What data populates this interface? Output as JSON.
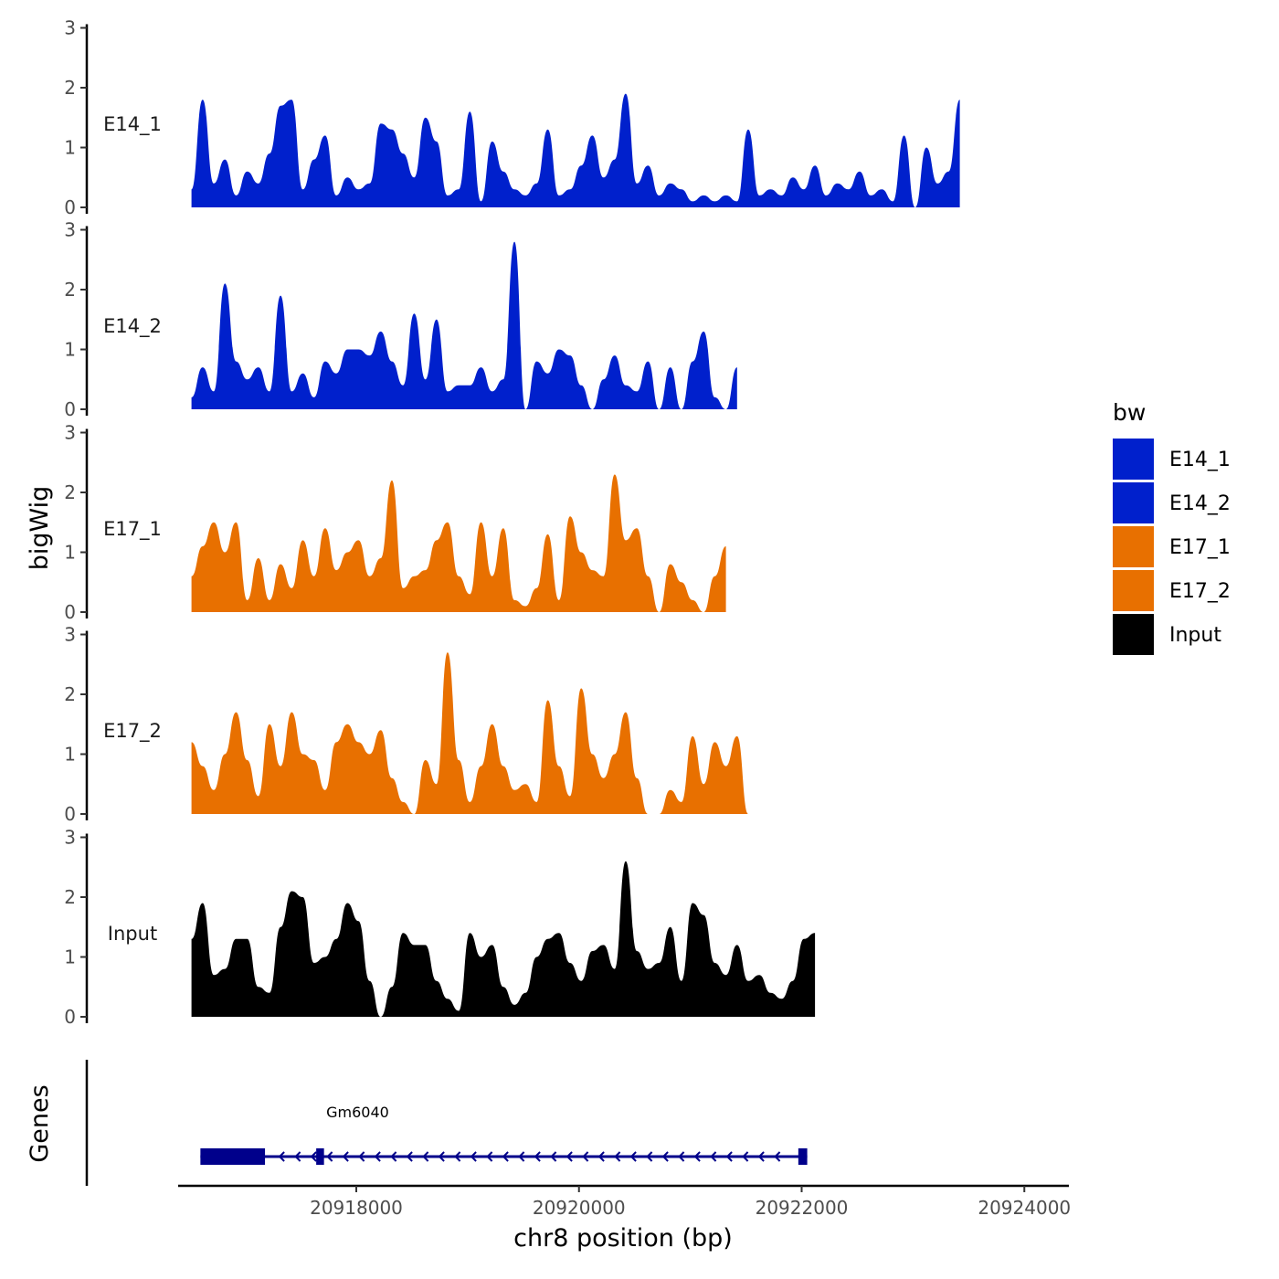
{
  "chart_data": {
    "type": "area",
    "ylabel": "bigWig",
    "xlabel": "chr8 position (bp)",
    "xlim": [
      20916400,
      20924400
    ],
    "ylim": [
      0,
      3
    ],
    "y_ticks": [
      "0",
      "1",
      "2",
      "3"
    ],
    "x_ticks": [
      {
        "value": 20918000,
        "label": "20918000"
      },
      {
        "value": 20920000,
        "label": "20920000"
      },
      {
        "value": 20922000,
        "label": "20922000"
      },
      {
        "value": 20924000,
        "label": "20924000"
      }
    ],
    "legend": {
      "title": "bw",
      "position": "right",
      "entries": [
        {
          "label": "E14_1",
          "color": "#0020cc"
        },
        {
          "label": "E14_2",
          "color": "#0020cc"
        },
        {
          "label": "E17_1",
          "color": "#e87000"
        },
        {
          "label": "E17_2",
          "color": "#e87000"
        },
        {
          "label": "Input",
          "color": "#000000"
        }
      ]
    },
    "x_start": 20916520,
    "x_step": 100,
    "series": [
      {
        "name": "E14_1",
        "color": "#0020cc",
        "values": [
          0.3,
          1.8,
          0.4,
          0.8,
          0.2,
          0.6,
          0.4,
          0.9,
          1.7,
          1.8,
          0.3,
          0.8,
          1.2,
          0.2,
          0.5,
          0.3,
          0.4,
          1.4,
          1.3,
          0.9,
          0.5,
          1.5,
          1.1,
          0.2,
          0.3,
          1.6,
          0.1,
          1.1,
          0.6,
          0.3,
          0.2,
          0.4,
          1.3,
          0.2,
          0.3,
          0.7,
          1.2,
          0.5,
          0.8,
          1.9,
          0.4,
          0.7,
          0.2,
          0.4,
          0.3,
          0.1,
          0.2,
          0.1,
          0.2,
          0.1,
          1.3,
          0.2,
          0.3,
          0.2,
          0.5,
          0.3,
          0.7,
          0.2,
          0.4,
          0.3,
          0.6,
          0.2,
          0.3,
          0.1,
          1.2,
          0.0,
          1.0,
          0.4,
          0.6,
          1.8
        ]
      },
      {
        "name": "E14_2",
        "color": "#0020cc",
        "values": [
          0.2,
          0.7,
          0.3,
          2.1,
          0.8,
          0.5,
          0.7,
          0.3,
          1.9,
          0.3,
          0.6,
          0.2,
          0.8,
          0.6,
          1.0,
          1.0,
          0.9,
          1.3,
          0.8,
          0.4,
          1.6,
          0.5,
          1.5,
          0.3,
          0.4,
          0.4,
          0.7,
          0.3,
          0.5,
          2.8,
          0.0,
          0.8,
          0.6,
          1.0,
          0.9,
          0.4,
          0.0,
          0.5,
          0.9,
          0.4,
          0.3,
          0.8,
          0.0,
          0.7,
          0.0,
          0.8,
          1.3,
          0.2,
          0.0,
          0.7
        ]
      },
      {
        "name": "E17_1",
        "color": "#e87000",
        "values": [
          0.6,
          1.1,
          1.5,
          1.0,
          1.5,
          0.2,
          0.9,
          0.2,
          0.8,
          0.4,
          1.2,
          0.6,
          1.4,
          0.7,
          1.0,
          1.2,
          0.6,
          0.9,
          2.2,
          0.4,
          0.6,
          0.7,
          1.2,
          1.5,
          0.6,
          0.3,
          1.5,
          0.6,
          1.4,
          0.2,
          0.1,
          0.4,
          1.3,
          0.2,
          1.6,
          1.0,
          0.7,
          0.6,
          2.3,
          1.2,
          1.4,
          0.6,
          0.0,
          0.8,
          0.5,
          0.2,
          0.0,
          0.6,
          1.1
        ]
      },
      {
        "name": "E17_2",
        "color": "#e87000",
        "values": [
          1.2,
          0.8,
          0.4,
          1.0,
          1.7,
          0.9,
          0.3,
          1.5,
          0.8,
          1.7,
          1.0,
          0.9,
          0.4,
          1.2,
          1.5,
          1.2,
          1.0,
          1.4,
          0.6,
          0.2,
          0.0,
          0.9,
          0.5,
          2.7,
          0.9,
          0.2,
          0.8,
          1.5,
          0.8,
          0.4,
          0.5,
          0.2,
          1.9,
          0.8,
          0.3,
          2.1,
          1.0,
          0.6,
          1.0,
          1.7,
          0.6,
          0.0,
          0.0,
          0.4,
          0.2,
          1.3,
          0.5,
          1.2,
          0.8,
          1.3,
          0.0
        ]
      },
      {
        "name": "Input",
        "color": "#000000",
        "values": [
          1.3,
          1.9,
          0.7,
          0.8,
          1.3,
          1.3,
          0.5,
          0.4,
          1.5,
          2.1,
          2.0,
          0.9,
          1.0,
          1.3,
          1.9,
          1.6,
          0.6,
          0.0,
          0.5,
          1.4,
          1.2,
          1.2,
          0.6,
          0.3,
          0.1,
          1.4,
          1.0,
          1.2,
          0.5,
          0.2,
          0.4,
          1.0,
          1.3,
          1.4,
          0.9,
          0.6,
          1.1,
          1.2,
          0.8,
          2.6,
          1.1,
          0.8,
          0.9,
          1.5,
          0.6,
          1.9,
          1.7,
          0.9,
          0.7,
          1.2,
          0.6,
          0.7,
          0.4,
          0.3,
          0.6,
          1.3,
          1.4
        ]
      }
    ],
    "gene_track": {
      "label": "Genes",
      "gene_name": "Gm6040",
      "strand": "-",
      "start": 20916600,
      "end": 20922050,
      "exons": [
        {
          "start": 20916600,
          "end": 20917180
        },
        {
          "start": 20917640,
          "end": 20917710
        },
        {
          "start": 20921970,
          "end": 20922050
        }
      ]
    }
  }
}
